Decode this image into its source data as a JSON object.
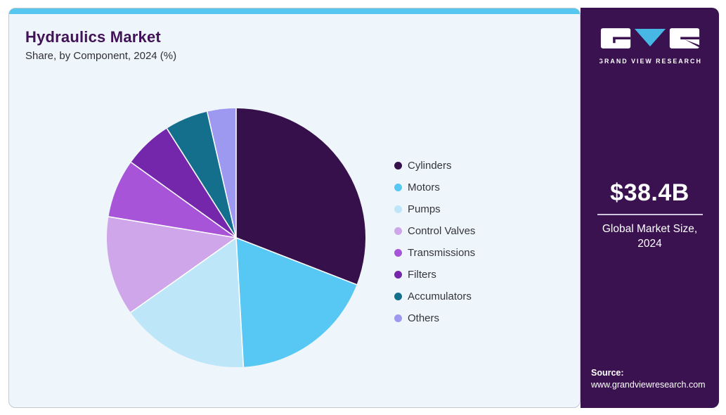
{
  "header": {
    "title": "Hydraulics Market",
    "subtitle": "Share, by Component, 2024 (%)"
  },
  "chart_data": {
    "type": "pie",
    "title": "Hydraulics Market Share, by Component, 2024 (%)",
    "categories": [
      "Cylinders",
      "Motors",
      "Pumps",
      "Control Valves",
      "Transmissions",
      "Filters",
      "Accumulators",
      "Others"
    ],
    "values": [
      30.9,
      18.2,
      16.1,
      12.4,
      7.3,
      6.1,
      5.4,
      3.6
    ],
    "colors": [
      "#35104a",
      "#57c7f3",
      "#bde6f8",
      "#cfa6ea",
      "#a854d8",
      "#7527ab",
      "#146f8c",
      "#9d99f1"
    ],
    "unit": "%",
    "legend_position": "right",
    "start_angle_deg": 0,
    "direction": "clockwise",
    "separator_color": "#ffffff"
  },
  "sidebar": {
    "brand_name": "GRAND VIEW RESEARCH",
    "market_size_value": "$38.4B",
    "market_size_label_line1": "Global Market Size,",
    "market_size_label_line2": "2024",
    "source_label": "Source:",
    "source_url": "www.grandviewresearch.com"
  },
  "theme": {
    "card_bg": "#eff6fb",
    "card_border": "#c3c9ce",
    "topbar_color": "#58c7ef",
    "sidebar_bg": "#39124f",
    "title_color": "#411258",
    "text_color": "#2f2f33",
    "logo_accent": "#47b7e5",
    "divider_color": "#cfc4dc"
  }
}
